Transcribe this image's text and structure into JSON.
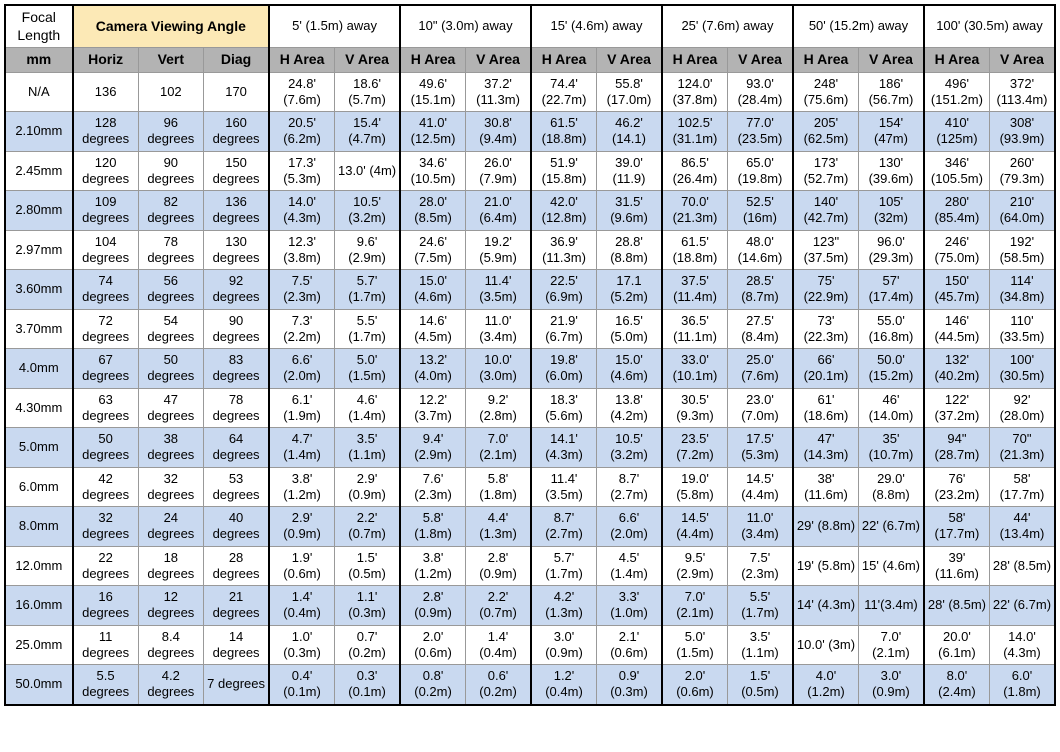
{
  "table": {
    "header_top": {
      "focal": "Focal Length",
      "angle_group": "Camera Viewing Angle",
      "distances": [
        "5' (1.5m) away",
        "10\" (3.0m) away",
        "15' (4.6m) away",
        "25' (7.6m) away",
        "50' (15.2m) away",
        "100' (30.5m) away"
      ]
    },
    "header_sub": {
      "mm": "mm",
      "horiz": "Horiz",
      "vert": "Vert",
      "diag": "Diag",
      "h_area": "H Area",
      "v_area": "V Area"
    },
    "rows": [
      {
        "focal": "N/A",
        "horiz": "136",
        "vert": "102",
        "diag": "170",
        "cells": [
          "24.8' (7.6m)",
          "18.6' (5.7m)",
          "49.6' (15.1m)",
          "37.2' (11.3m)",
          "74.4' (22.7m)",
          "55.8' (17.0m)",
          "124.0' (37.8m)",
          "93.0' (28.4m)",
          "248' (75.6m)",
          "186' (56.7m)",
          "496' (151.2m)",
          "372' (113.4m)"
        ]
      },
      {
        "focal": "2.10mm",
        "horiz": "128 degrees",
        "vert": "96 degrees",
        "diag": "160 degrees",
        "cells": [
          "20.5' (6.2m)",
          "15.4' (4.7m)",
          "41.0' (12.5m)",
          "30.8' (9.4m)",
          "61.5' (18.8m)",
          "46.2' (14.1)",
          "102.5' (31.1m)",
          "77.0' (23.5m)",
          "205' (62.5m)",
          "154' (47m)",
          "410' (125m)",
          "308' (93.9m)"
        ]
      },
      {
        "focal": "2.45mm",
        "horiz": "120 degrees",
        "vert": "90 degrees",
        "diag": "150 degrees",
        "cells": [
          "17.3' (5.3m)",
          "13.0' (4m)",
          "34.6' (10.5m)",
          "26.0' (7.9m)",
          "51.9' (15.8m)",
          "39.0' (11.9)",
          "86.5' (26.4m)",
          "65.0' (19.8m)",
          "173' (52.7m)",
          "130' (39.6m)",
          "346' (105.5m)",
          "260' (79.3m)"
        ]
      },
      {
        "focal": "2.80mm",
        "horiz": "109 degrees",
        "vert": "82 degrees",
        "diag": "136 degrees",
        "cells": [
          "14.0' (4.3m)",
          "10.5' (3.2m)",
          "28.0' (8.5m)",
          "21.0' (6.4m)",
          "42.0' (12.8m)",
          "31.5' (9.6m)",
          "70.0' (21.3m)",
          "52.5' (16m)",
          "140' (42.7m)",
          "105' (32m)",
          "280' (85.4m)",
          "210' (64.0m)"
        ]
      },
      {
        "focal": "2.97mm",
        "horiz": "104 degrees",
        "vert": "78 degrees",
        "diag": "130 degrees",
        "cells": [
          "12.3' (3.8m)",
          "9.6' (2.9m)",
          "24.6' (7.5m)",
          "19.2' (5.9m)",
          "36.9' (11.3m)",
          "28.8' (8.8m)",
          "61.5' (18.8m)",
          "48.0' (14.6m)",
          "123\" (37.5m)",
          "96.0' (29.3m)",
          "246' (75.0m)",
          "192' (58.5m)"
        ]
      },
      {
        "focal": "3.60mm",
        "horiz": "74 degrees",
        "vert": "56 degrees",
        "diag": "92 degrees",
        "cells": [
          "7.5' (2.3m)",
          "5.7' (1.7m)",
          "15.0' (4.6m)",
          "11.4' (3.5m)",
          "22.5' (6.9m)",
          "17.1 (5.2m)",
          "37.5' (11.4m)",
          "28.5' (8.7m)",
          "75' (22.9m)",
          "57' (17.4m)",
          "150' (45.7m)",
          "114' (34.8m)"
        ]
      },
      {
        "focal": "3.70mm",
        "horiz": "72 degrees",
        "vert": "54 degrees",
        "diag": "90 degrees",
        "cells": [
          "7.3' (2.2m)",
          "5.5' (1.7m)",
          "14.6' (4.5m)",
          "11.0' (3.4m)",
          "21.9' (6.7m)",
          "16.5' (5.0m)",
          "36.5' (11.1m)",
          "27.5' (8.4m)",
          "73' (22.3m)",
          "55.0' (16.8m)",
          "146' (44.5m)",
          "110' (33.5m)"
        ]
      },
      {
        "focal": "4.0mm",
        "horiz": "67 degrees",
        "vert": "50 degrees",
        "diag": "83 degrees",
        "cells": [
          "6.6' (2.0m)",
          "5.0' (1.5m)",
          "13.2' (4.0m)",
          "10.0' (3.0m)",
          "19.8' (6.0m)",
          "15.0' (4.6m)",
          "33.0' (10.1m)",
          "25.0' (7.6m)",
          "66' (20.1m)",
          "50.0' (15.2m)",
          "132' (40.2m)",
          "100' (30.5m)"
        ]
      },
      {
        "focal": "4.30mm",
        "horiz": "63 degrees",
        "vert": "47 degrees",
        "diag": "78 degrees",
        "cells": [
          "6.1' (1.9m)",
          "4.6' (1.4m)",
          "12.2' (3.7m)",
          "9.2' (2.8m)",
          "18.3' (5.6m)",
          "13.8' (4.2m)",
          "30.5' (9.3m)",
          "23.0' (7.0m)",
          "61' (18.6m)",
          "46' (14.0m)",
          "122' (37.2m)",
          "92' (28.0m)"
        ]
      },
      {
        "focal": "5.0mm",
        "horiz": "50 degrees",
        "vert": "38 degrees",
        "diag": "64 degrees",
        "cells": [
          "4.7' (1.4m)",
          "3.5' (1.1m)",
          "9.4' (2.9m)",
          "7.0' (2.1m)",
          "14.1' (4.3m)",
          "10.5' (3.2m)",
          "23.5' (7.2m)",
          "17.5' (5.3m)",
          "47' (14.3m)",
          "35' (10.7m)",
          "94\" (28.7m)",
          "70\" (21.3m)"
        ]
      },
      {
        "focal": "6.0mm",
        "horiz": "42 degrees",
        "vert": "32 degrees",
        "diag": "53 degrees",
        "cells": [
          "3.8' (1.2m)",
          "2.9' (0.9m)",
          "7.6' (2.3m)",
          "5.8' (1.8m)",
          "11.4' (3.5m)",
          "8.7' (2.7m)",
          "19.0' (5.8m)",
          "14.5' (4.4m)",
          "38' (11.6m)",
          "29.0' (8.8m)",
          "76' (23.2m)",
          "58' (17.7m)"
        ]
      },
      {
        "focal": "8.0mm",
        "horiz": "32 degrees",
        "vert": "24 degrees",
        "diag": "40 degrees",
        "cells": [
          "2.9' (0.9m)",
          "2.2' (0.7m)",
          "5.8' (1.8m)",
          "4.4' (1.3m)",
          "8.7' (2.7m)",
          "6.6' (2.0m)",
          "14.5' (4.4m)",
          "11.0' (3.4m)",
          "29' (8.8m)",
          "22' (6.7m)",
          "58' (17.7m)",
          "44' (13.4m)"
        ]
      },
      {
        "focal": "12.0mm",
        "horiz": "22 degrees",
        "vert": "18 degrees",
        "diag": "28 degrees",
        "cells": [
          "1.9' (0.6m)",
          "1.5' (0.5m)",
          "3.8' (1.2m)",
          "2.8' (0.9m)",
          "5.7' (1.7m)",
          "4.5' (1.4m)",
          "9.5' (2.9m)",
          "7.5' (2.3m)",
          "19' (5.8m)",
          "15' (4.6m)",
          "39' (11.6m)",
          "28' (8.5m)"
        ]
      },
      {
        "focal": "16.0mm",
        "horiz": "16 degrees",
        "vert": "12 degrees",
        "diag": "21 degrees",
        "cells": [
          "1.4' (0.4m)",
          "1.1' (0.3m)",
          "2.8' (0.9m)",
          "2.2' (0.7m)",
          "4.2' (1.3m)",
          "3.3' (1.0m)",
          "7.0' (2.1m)",
          "5.5' (1.7m)",
          "14' (4.3m)",
          "11'(3.4m)",
          "28' (8.5m)",
          "22' (6.7m)"
        ]
      },
      {
        "focal": "25.0mm",
        "horiz": "11 degrees",
        "vert": "8.4 degrees",
        "diag": "14 degrees",
        "cells": [
          "1.0' (0.3m)",
          "0.7' (0.2m)",
          "2.0' (0.6m)",
          "1.4' (0.4m)",
          "3.0' (0.9m)",
          "2.1' (0.6m)",
          "5.0' (1.5m)",
          "3.5' (1.1m)",
          "10.0' (3m)",
          "7.0' (2.1m)",
          "20.0' (6.1m)",
          "14.0' (4.3m)"
        ]
      },
      {
        "focal": "50.0mm",
        "horiz": "5.5 degrees",
        "vert": "4.2 degrees",
        "diag": "7 degrees",
        "cells": [
          "0.4' (0.1m)",
          "0.3' (0.1m)",
          "0.8' (0.2m)",
          "0.6' (0.2m)",
          "1.2' (0.4m)",
          "0.9' (0.3m)",
          "2.0' (0.6m)",
          "1.5' (0.5m)",
          "4.0' (1.2m)",
          "3.0' (0.9m)",
          "8.0' (2.4m)",
          "6.0' (1.8m)"
        ]
      }
    ],
    "colors": {
      "row_even": "#ffffff",
      "row_odd": "#c9d9f0",
      "sub_header": "#b3b3b3",
      "angle_group_bg": "#fce9b6",
      "border": "#999999",
      "thick_border": "#000000"
    }
  }
}
